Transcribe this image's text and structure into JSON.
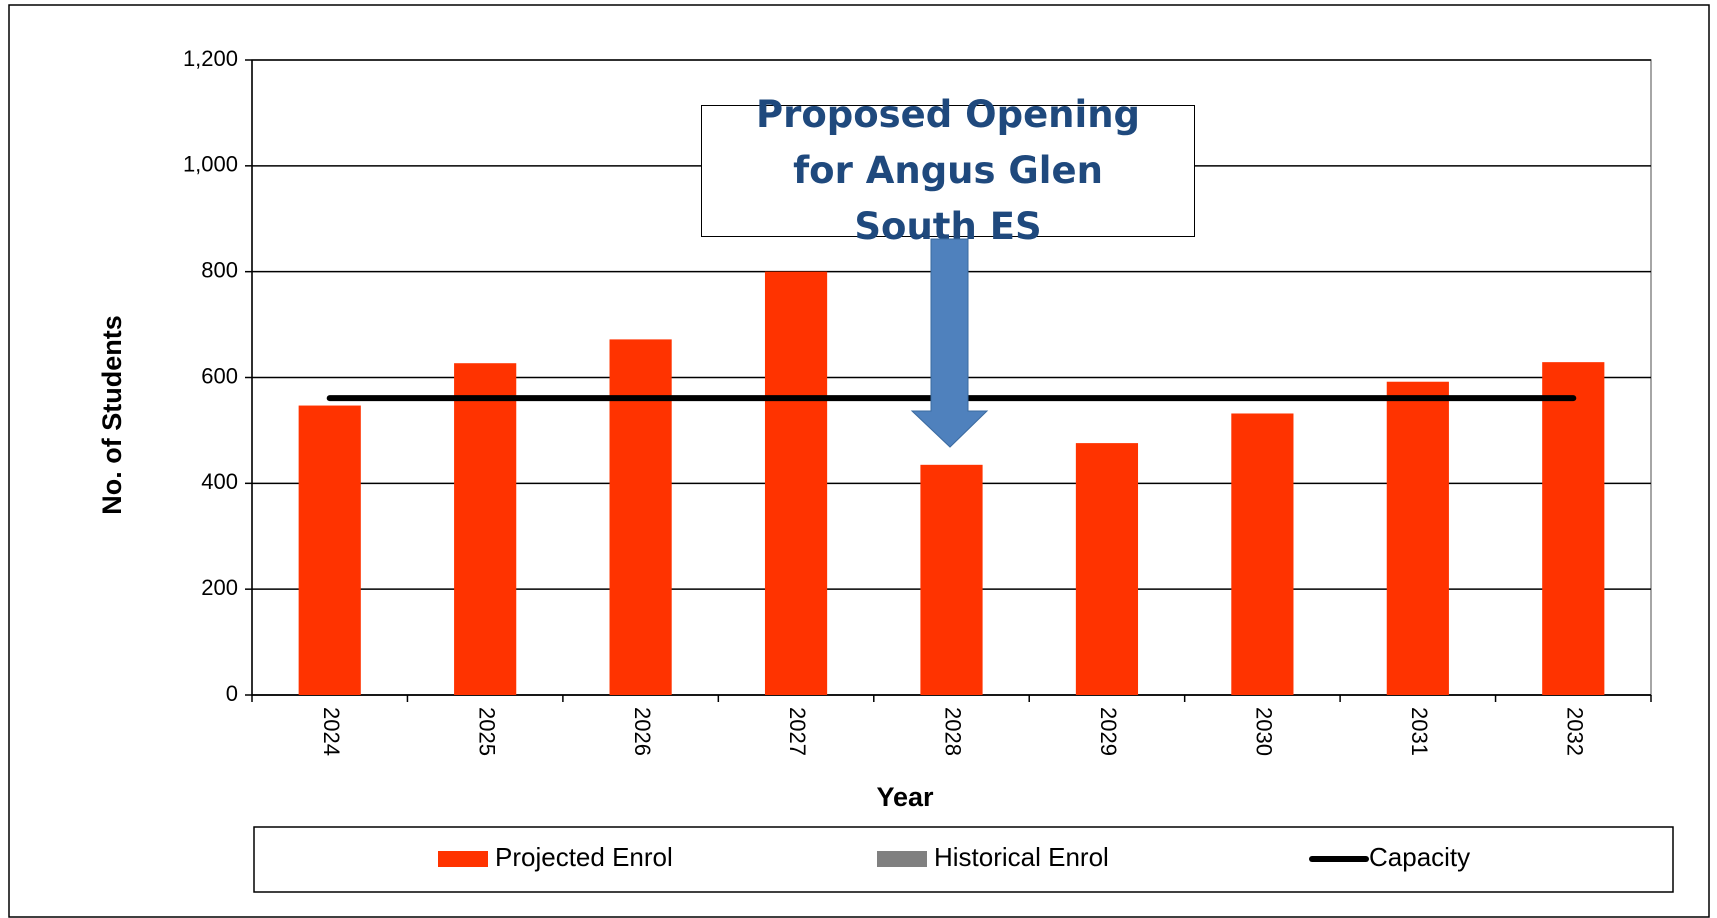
{
  "chart_data": {
    "type": "bar",
    "xlabel": "Year",
    "ylabel": "No. of Students",
    "annotation": "Proposed Opening for Angus Glen South ES",
    "categories": [
      "2024",
      "2025",
      "2026",
      "2027",
      "2028",
      "2029",
      "2030",
      "2031",
      "2032"
    ],
    "series": [
      {
        "name": "Projected Enrol",
        "type": "bar",
        "color": "#ff3300",
        "values": [
          547,
          627,
          672,
          800,
          435,
          476,
          532,
          592,
          629
        ]
      },
      {
        "name": "Historical Enrol",
        "type": "bar",
        "color": "#808080",
        "values": [
          null,
          null,
          null,
          null,
          null,
          null,
          null,
          null,
          null
        ]
      },
      {
        "name": "Capacity",
        "type": "line",
        "color": "#000000",
        "values": [
          561,
          561,
          561,
          561,
          561,
          561,
          561,
          561,
          561
        ]
      }
    ],
    "ylim": [
      0,
      1200
    ],
    "yticks": [
      0,
      200,
      400,
      600,
      800,
      {
        "value": 1000,
        "label": "1,000"
      },
      {
        "value": 1200,
        "label": "1,200"
      }
    ],
    "grid": true
  }
}
